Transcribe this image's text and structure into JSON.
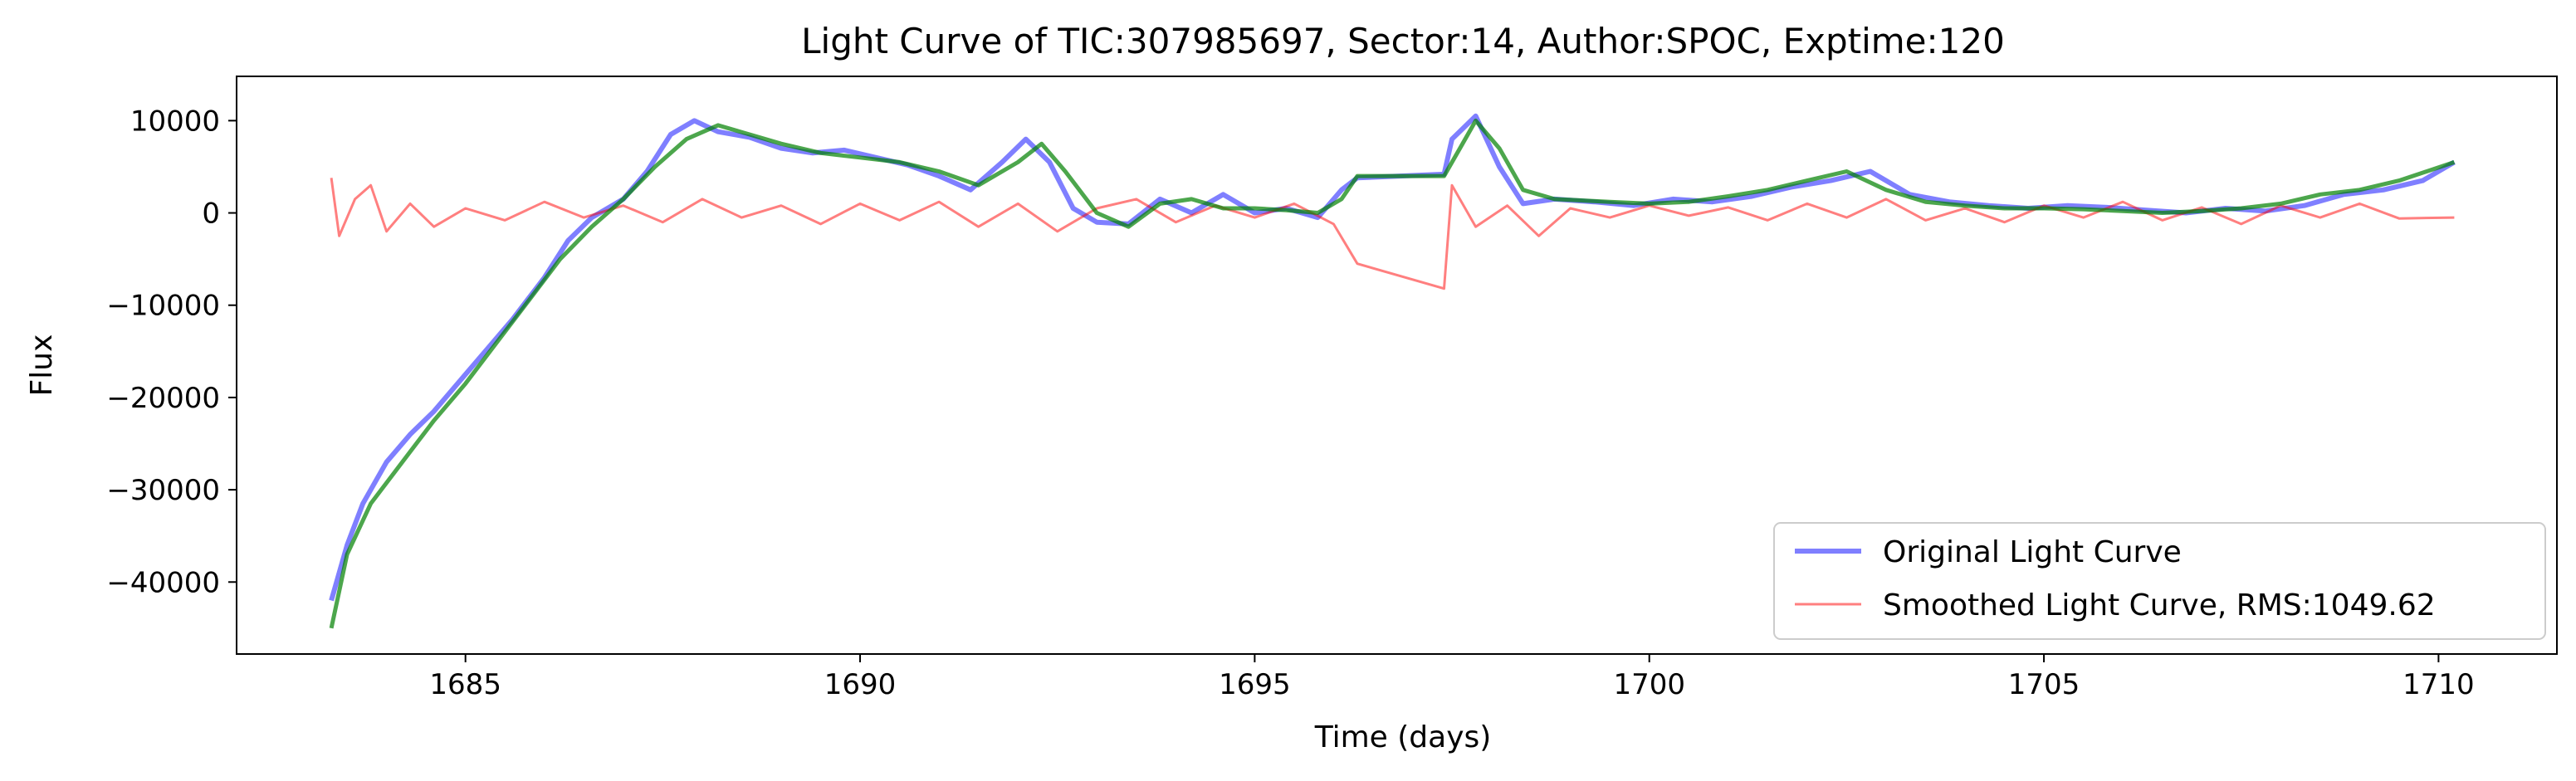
{
  "chart_data": {
    "type": "line",
    "title": "Light Curve of TIC:307985697, Sector:14, Author:SPOC, Exptime:120",
    "xlabel": "Time (days)",
    "ylabel": "Flux",
    "xlim": [
      1682.1,
      1711.5
    ],
    "ylim": [
      -47800,
      14800
    ],
    "xticks": [
      1685,
      1690,
      1695,
      1700,
      1705,
      1710
    ],
    "yticks": [
      -40000,
      -30000,
      -20000,
      -10000,
      0,
      10000
    ],
    "xtick_labels": [
      "1685",
      "1690",
      "1695",
      "1700",
      "1705",
      "1710"
    ],
    "ytick_labels": [
      "−40000",
      "−30000",
      "−20000",
      "−10000",
      "0",
      "10000"
    ],
    "grid": false,
    "legend_position": "lower-right",
    "series": [
      {
        "name": "Original Light Curve",
        "color": "#0000ff",
        "opacity": 0.5,
        "x": [
          1683.3,
          1683.5,
          1683.7,
          1684.0,
          1684.3,
          1684.6,
          1685.0,
          1685.3,
          1685.6,
          1686.0,
          1686.3,
          1686.6,
          1687.0,
          1687.3,
          1687.6,
          1687.9,
          1688.2,
          1688.6,
          1689.0,
          1689.4,
          1689.8,
          1690.2,
          1690.6,
          1691.0,
          1691.4,
          1691.8,
          1692.1,
          1692.4,
          1692.7,
          1693.0,
          1693.4,
          1693.8,
          1694.2,
          1694.6,
          1695.0,
          1695.4,
          1695.8,
          1696.1,
          1696.3,
          1697.4,
          1697.5,
          1697.8,
          1698.1,
          1698.4,
          1698.8,
          1699.3,
          1699.8,
          1700.3,
          1700.8,
          1701.3,
          1701.8,
          1702.3,
          1702.8,
          1703.3,
          1703.8,
          1704.3,
          1704.8,
          1705.3,
          1705.8,
          1706.3,
          1706.8,
          1707.3,
          1707.8,
          1708.3,
          1708.8,
          1709.3,
          1709.8,
          1710.2
        ],
        "y": [
          -42000,
          -36000,
          -31500,
          -27000,
          -24000,
          -21500,
          -17500,
          -14500,
          -11500,
          -7000,
          -3000,
          -500,
          1500,
          4500,
          8500,
          10000,
          8800,
          8200,
          7000,
          6500,
          6800,
          6000,
          5200,
          4000,
          2500,
          5500,
          8000,
          5500,
          500,
          -1000,
          -1200,
          1500,
          0,
          2000,
          0,
          500,
          -500,
          2500,
          3800,
          4200,
          8000,
          10500,
          5000,
          1000,
          1500,
          1200,
          800,
          1500,
          1200,
          1800,
          2800,
          3500,
          4500,
          2000,
          1200,
          800,
          500,
          800,
          600,
          300,
          0,
          500,
          200,
          800,
          2000,
          2500,
          3500,
          5500
        ]
      },
      {
        "name": "Smoothed Light Curve, RMS:1049.62",
        "color": "#ff0000",
        "opacity": 0.5,
        "x": [
          1683.3,
          1683.4,
          1683.6,
          1683.8,
          1684.0,
          1684.3,
          1684.6,
          1685.0,
          1685.5,
          1686.0,
          1686.5,
          1687.0,
          1687.5,
          1688.0,
          1688.5,
          1689.0,
          1689.5,
          1690.0,
          1690.5,
          1691.0,
          1691.5,
          1692.0,
          1692.5,
          1693.0,
          1693.5,
          1694.0,
          1694.5,
          1695.0,
          1695.5,
          1696.0,
          1696.3,
          1697.4,
          1697.5,
          1697.8,
          1698.2,
          1698.6,
          1699.0,
          1699.5,
          1700.0,
          1700.5,
          1701.0,
          1701.5,
          1702.0,
          1702.5,
          1703.0,
          1703.5,
          1704.0,
          1704.5,
          1705.0,
          1705.5,
          1706.0,
          1706.5,
          1707.0,
          1707.5,
          1708.0,
          1708.5,
          1709.0,
          1709.5,
          1710.2
        ],
        "y": [
          3800,
          -2500,
          1500,
          3000,
          -2000,
          1000,
          -1500,
          500,
          -800,
          1200,
          -500,
          800,
          -1000,
          1500,
          -500,
          800,
          -1200,
          1000,
          -800,
          1200,
          -1500,
          1000,
          -2000,
          500,
          1500,
          -1000,
          800,
          -500,
          1000,
          -1200,
          -5500,
          -8200,
          3000,
          -1500,
          800,
          -2500,
          500,
          -500,
          800,
          -300,
          600,
          -800,
          1000,
          -500,
          1500,
          -800,
          500,
          -1000,
          800,
          -500,
          1200,
          -800,
          600,
          -1200,
          800,
          -500,
          1000,
          -600,
          -500
        ]
      },
      {
        "name": "",
        "color": "#008000",
        "opacity": 0.7,
        "x": [
          1683.3,
          1683.5,
          1683.8,
          1684.2,
          1684.6,
          1685.0,
          1685.4,
          1685.8,
          1686.2,
          1686.6,
          1687.0,
          1687.4,
          1687.8,
          1688.2,
          1688.6,
          1689.0,
          1689.5,
          1690.0,
          1690.5,
          1691.0,
          1691.5,
          1692.0,
          1692.3,
          1692.6,
          1693.0,
          1693.4,
          1693.8,
          1694.2,
          1694.6,
          1695.0,
          1695.4,
          1695.8,
          1696.1,
          1696.3,
          1697.4,
          1697.6,
          1697.8,
          1698.1,
          1698.4,
          1698.8,
          1699.5,
          1700.0,
          1700.5,
          1701.0,
          1701.5,
          1702.0,
          1702.5,
          1703.0,
          1703.5,
          1704.0,
          1704.5,
          1705.0,
          1705.5,
          1706.0,
          1706.5,
          1707.0,
          1707.5,
          1708.0,
          1708.5,
          1709.0,
          1709.5,
          1710.2
        ],
        "y": [
          -45000,
          -37000,
          -31500,
          -27000,
          -22500,
          -18500,
          -14000,
          -9500,
          -5000,
          -1500,
          1500,
          5000,
          8000,
          9500,
          8500,
          7500,
          6500,
          6000,
          5500,
          4500,
          3000,
          5500,
          7500,
          4500,
          0,
          -1500,
          1000,
          1500,
          500,
          500,
          300,
          0,
          1500,
          4000,
          4000,
          7000,
          10000,
          7000,
          2500,
          1500,
          1200,
          1000,
          1200,
          1800,
          2500,
          3500,
          4500,
          2500,
          1200,
          800,
          500,
          500,
          400,
          200,
          0,
          200,
          500,
          1000,
          2000,
          2500,
          3500,
          5500
        ]
      }
    ]
  }
}
